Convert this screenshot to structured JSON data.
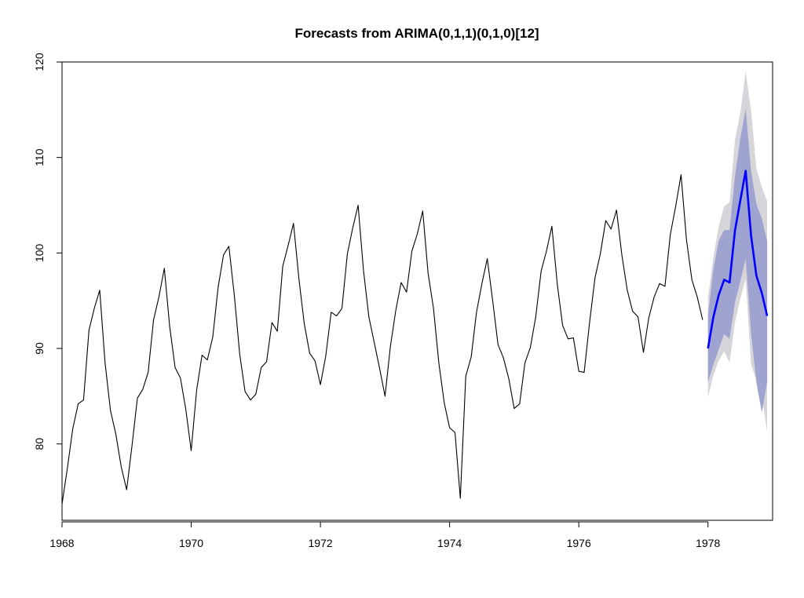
{
  "chart_data": {
    "type": "line",
    "title": "Forecasts from ARIMA(0,1,1)(0,1,0)[12]",
    "xlabel": "",
    "ylabel": "",
    "xlim": [
      1968,
      1979
    ],
    "ylim": [
      72,
      120
    ],
    "x_ticks": [
      "1968",
      "1970",
      "1972",
      "1974",
      "1976",
      "1978"
    ],
    "y_ticks": [
      "80",
      "90",
      "100",
      "110",
      "120"
    ],
    "grid": false,
    "colors": {
      "history": "#000000",
      "forecast": "#0000ff",
      "band80": "#9fa3cf",
      "band95": "#d6d6da"
    },
    "history": {
      "start": 1968,
      "frequency": 12,
      "values": [
        73.7,
        77.5,
        81.6,
        84.2,
        84.6,
        91.9,
        94.2,
        96.1,
        88.5,
        83.5,
        81.0,
        77.6,
        75.2,
        79.8,
        84.8,
        85.7,
        87.5,
        93.0,
        95.4,
        98.4,
        92.3,
        88.0,
        86.9,
        83.6,
        79.3,
        85.6,
        89.3,
        88.8,
        91.2,
        96.4,
        99.8,
        100.7,
        95.6,
        89.4,
        85.5,
        84.6,
        85.2,
        88.0,
        88.6,
        92.7,
        91.8,
        98.6,
        100.8,
        103.1,
        97.3,
        92.6,
        89.5,
        88.7,
        86.2,
        89.2,
        93.8,
        93.4,
        94.2,
        99.9,
        102.6,
        105.0,
        98.2,
        93.3,
        90.6,
        87.9,
        85.0,
        90.2,
        94.0,
        96.9,
        95.9,
        100.2,
        102.0,
        104.4,
        97.9,
        94.2,
        88.5,
        84.3,
        81.7,
        81.2,
        74.3,
        87.1,
        89.1,
        93.8,
        96.8,
        99.4,
        95.0,
        90.4,
        89.0,
        86.8,
        83.7,
        84.2,
        88.5,
        90.1,
        93.3,
        98.1,
        100.2,
        102.8,
        96.7,
        92.4,
        91.0,
        91.1,
        87.6,
        87.5,
        92.7,
        97.4,
        99.9,
        103.4,
        102.5,
        104.5,
        99.8,
        96.1,
        93.9,
        93.3,
        89.6,
        93.2,
        95.4,
        96.8,
        96.5,
        101.9,
        104.9,
        108.2,
        101.4,
        97.2,
        95.4,
        93.0
      ]
    },
    "forecast": {
      "start": 1978,
      "frequency": 12,
      "mean": [
        90.0,
        93.3,
        95.6,
        97.2,
        96.9,
        102.3,
        105.5,
        108.6,
        101.8,
        97.6,
        95.8,
        93.4
      ],
      "lo80": [
        86.5,
        88.3,
        89.9,
        91.5,
        91.0,
        94.8,
        97.0,
        99.4,
        91.6,
        86.4,
        83.3,
        86.5
      ],
      "hi80": [
        93.5,
        98.3,
        101.3,
        102.4,
        102.4,
        108.0,
        112.0,
        115.1,
        108.6,
        105.1,
        103.6,
        101.2
      ],
      "lo95": [
        84.9,
        87.2,
        88.7,
        89.7,
        88.5,
        92.7,
        95.2,
        97.3,
        88.3,
        86.7,
        84.9,
        81.3
      ],
      "hi95": [
        95.3,
        99.6,
        102.8,
        104.9,
        105.3,
        111.8,
        114.7,
        119.0,
        114.9,
        108.8,
        106.9,
        105.4
      ]
    }
  }
}
